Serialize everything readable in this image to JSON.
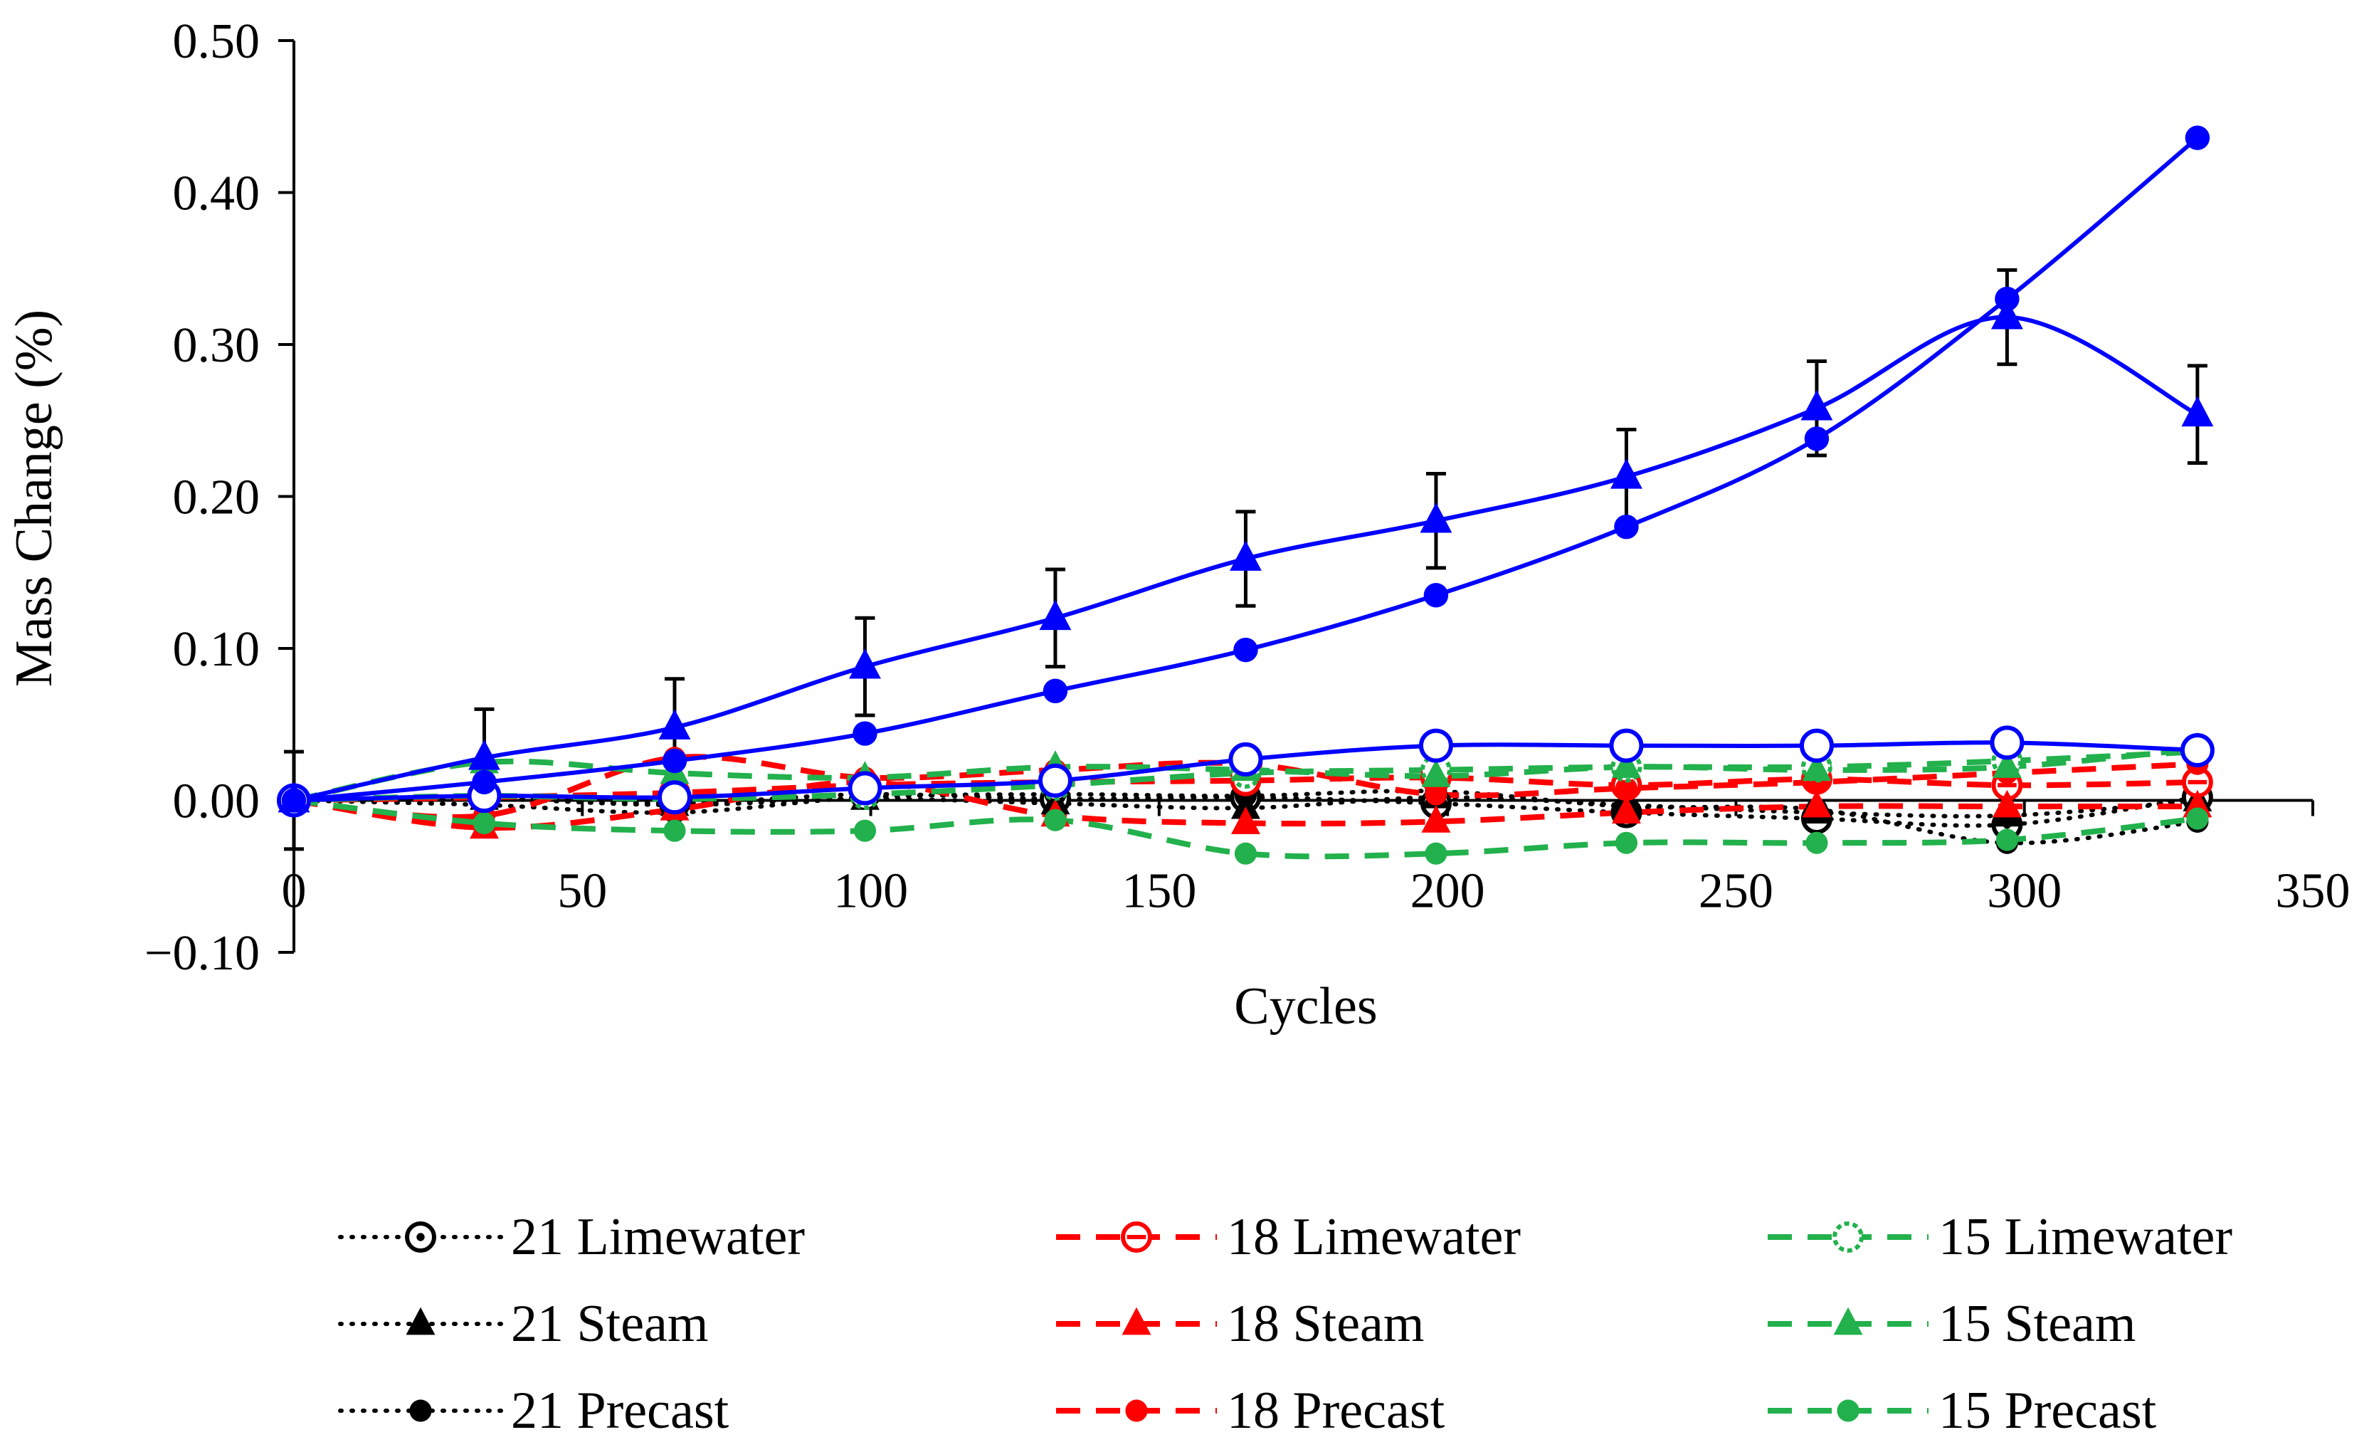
{
  "chart_data": {
    "type": "line",
    "title": "",
    "xlabel": "Cycles",
    "ylabel": "Mass Change (%)",
    "xlim": [
      0,
      350
    ],
    "ylim": [
      -0.1,
      0.5
    ],
    "x_ticks": [
      "0",
      "50",
      "100",
      "150",
      "200",
      "250",
      "300",
      "350"
    ],
    "y_ticks": [
      "−0.10",
      "0.00",
      "0.10",
      "0.20",
      "0.30",
      "0.40",
      "0.50"
    ],
    "x": [
      0,
      33,
      66,
      99,
      132,
      165,
      198,
      231,
      264,
      297,
      330
    ],
    "grid": false,
    "legend_position": "bottom",
    "series": [
      {
        "name": "21 Limewater",
        "color": "#000000",
        "line": "dotted",
        "marker": "open-circle-dot",
        "values": [
          0,
          0.002,
          -0.002,
          0.004,
          0.001,
          0.002,
          -0.002,
          -0.008,
          -0.012,
          -0.016,
          0.002
        ]
      },
      {
        "name": "21 Steam",
        "color": "#000000",
        "line": "dotted",
        "marker": "triangle",
        "values": [
          0,
          0.001,
          -0.003,
          0.001,
          -0.002,
          -0.005,
          0.002,
          -0.003,
          -0.008,
          -0.01,
          0.0
        ]
      },
      {
        "name": "21 Precast",
        "color": "#000000",
        "line": "dotted",
        "marker": "filled-circle",
        "values": [
          0,
          -0.003,
          -0.008,
          0.002,
          0.004,
          0.003,
          0.006,
          -0.004,
          -0.006,
          -0.028,
          -0.014
        ]
      },
      {
        "name": "18 Limewater",
        "color": "#ff0000",
        "line": "dashed",
        "marker": "open-circle-bar",
        "values": [
          0,
          0.002,
          0.005,
          0.01,
          0.012,
          0.013,
          0.015,
          0.01,
          0.014,
          0.01,
          0.012
        ]
      },
      {
        "name": "18 Steam",
        "color": "#ff0000",
        "line": "dashed",
        "marker": "triangle",
        "values": [
          0,
          -0.018,
          -0.006,
          0.012,
          -0.01,
          -0.015,
          -0.014,
          -0.008,
          -0.004,
          -0.004,
          -0.004
        ]
      },
      {
        "name": "18 Precast",
        "color": "#ff0000",
        "line": "dashed",
        "marker": "filled-circle",
        "values": [
          0,
          -0.01,
          0.028,
          0.015,
          0.02,
          0.024,
          0.004,
          0.008,
          0.012,
          0.018,
          0.024
        ]
      },
      {
        "name": "15 Limewater",
        "color": "#22b14c",
        "line": "dashed",
        "marker": "open-circle-dashed",
        "values": [
          0,
          0.003,
          0.001,
          0.004,
          0.01,
          0.018,
          0.02,
          0.022,
          0.022,
          0.026,
          0.032
        ]
      },
      {
        "name": "15 Steam",
        "color": "#22b14c",
        "line": "dashed",
        "marker": "triangle",
        "values": [
          0,
          0.025,
          0.018,
          0.015,
          0.022,
          0.02,
          0.016,
          0.022,
          0.02,
          0.022,
          0.034
        ]
      },
      {
        "name": "15 Precast",
        "color": "#22b14c",
        "line": "dashed",
        "marker": "filled-circle",
        "values": [
          0,
          -0.015,
          -0.02,
          -0.02,
          -0.013,
          -0.035,
          -0.035,
          -0.028,
          -0.028,
          -0.026,
          -0.012
        ]
      },
      {
        "name": "",
        "color": "#0000ff",
        "line": "solid",
        "marker": "open-circle",
        "values": [
          0,
          0.003,
          0.002,
          0.008,
          0.013,
          0.027,
          0.036,
          0.036,
          0.036,
          0.038,
          0.033
        ]
      },
      {
        "name": "",
        "color": "#0000ff",
        "line": "solid",
        "marker": "triangle",
        "values": [
          0,
          0.028,
          0.048,
          0.088,
          0.12,
          0.159,
          0.184,
          0.213,
          0.258,
          0.318,
          0.254
        ],
        "error": [
          0.032,
          0.032,
          0.032,
          0.032,
          0.032,
          0.031,
          0.031,
          0.031,
          0.031,
          0.031,
          0.032
        ]
      },
      {
        "name": "",
        "color": "#0000ff",
        "line": "solid",
        "marker": "filled-circle",
        "values": [
          0,
          0.012,
          0.026,
          0.044,
          0.072,
          0.099,
          0.135,
          0.18,
          0.238,
          0.33,
          0.436
        ]
      }
    ]
  }
}
